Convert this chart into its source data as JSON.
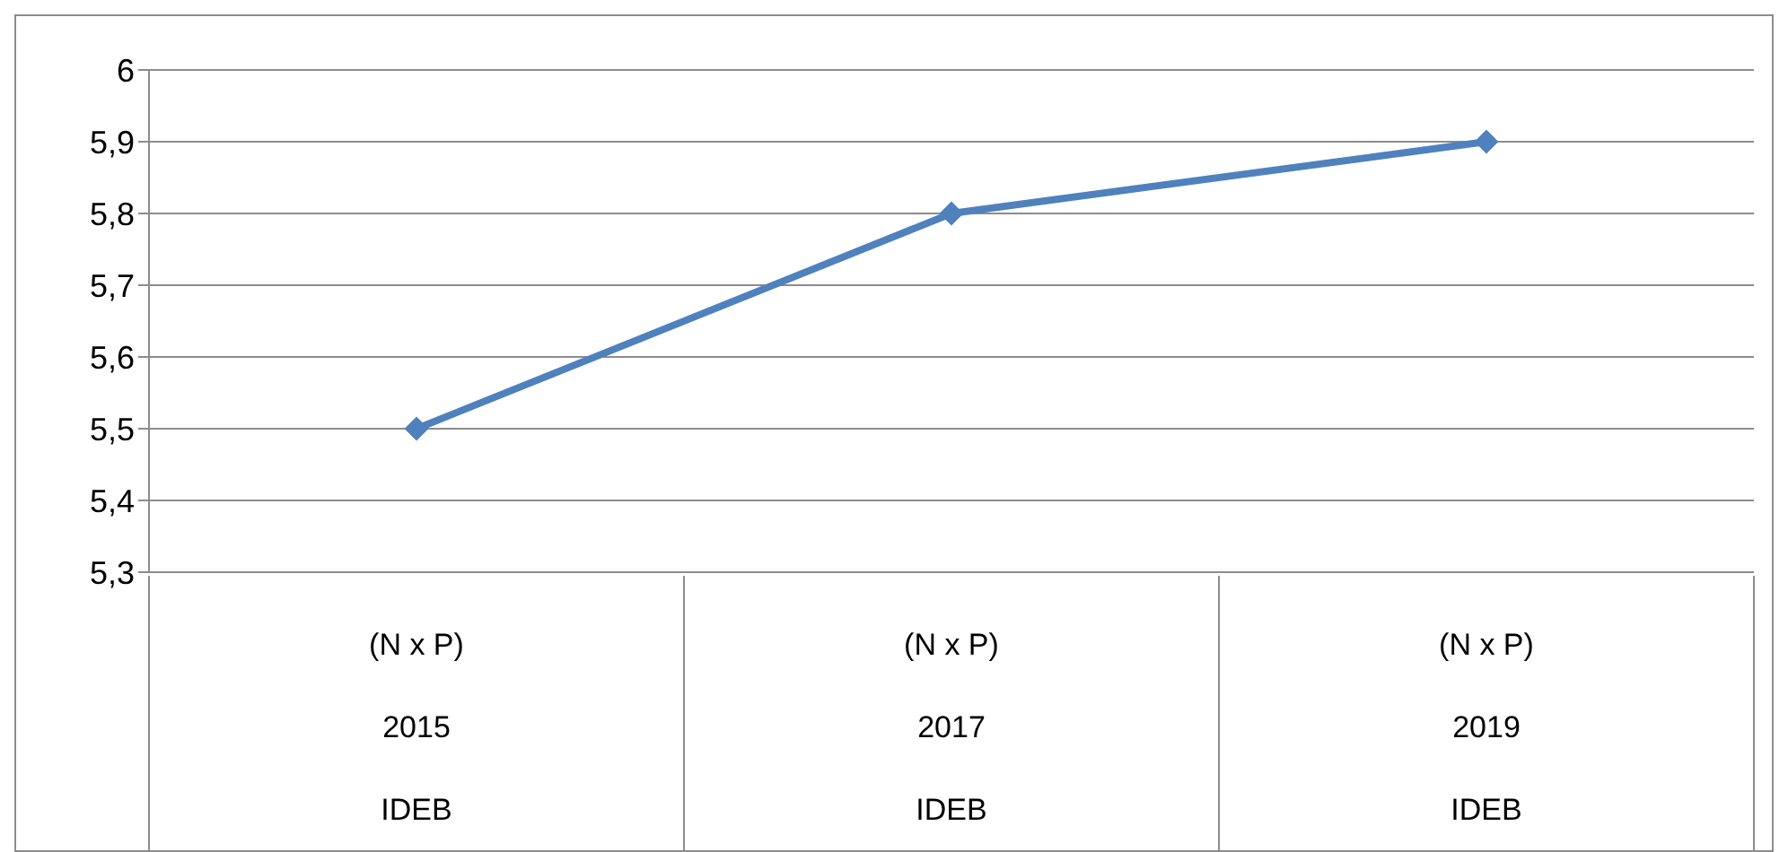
{
  "chart_data": {
    "type": "line",
    "categories": [
      "(N x P)\n2015\nIDEB",
      "(N x P)\n2017\nIDEB",
      "(N x P)\n2019\nIDEB"
    ],
    "series": [
      {
        "color": "#4f81bd",
        "values": [
          5.5,
          5.8,
          5.9
        ]
      }
    ],
    "ylim": [
      5.3,
      6
    ],
    "yticks": [
      {
        "value": 5.3,
        "label": "5,3"
      },
      {
        "value": 5.4,
        "label": "5,4"
      },
      {
        "value": 5.5,
        "label": "5,5"
      },
      {
        "value": 5.6,
        "label": "5,6"
      },
      {
        "value": 5.7,
        "label": "5,7"
      },
      {
        "value": 5.8,
        "label": "5,8"
      },
      {
        "value": 5.9,
        "label": "5,9"
      },
      {
        "value": 6,
        "label": "6"
      }
    ],
    "grid": "y",
    "legend": false,
    "marker": "diamond",
    "line_style": "solid"
  }
}
